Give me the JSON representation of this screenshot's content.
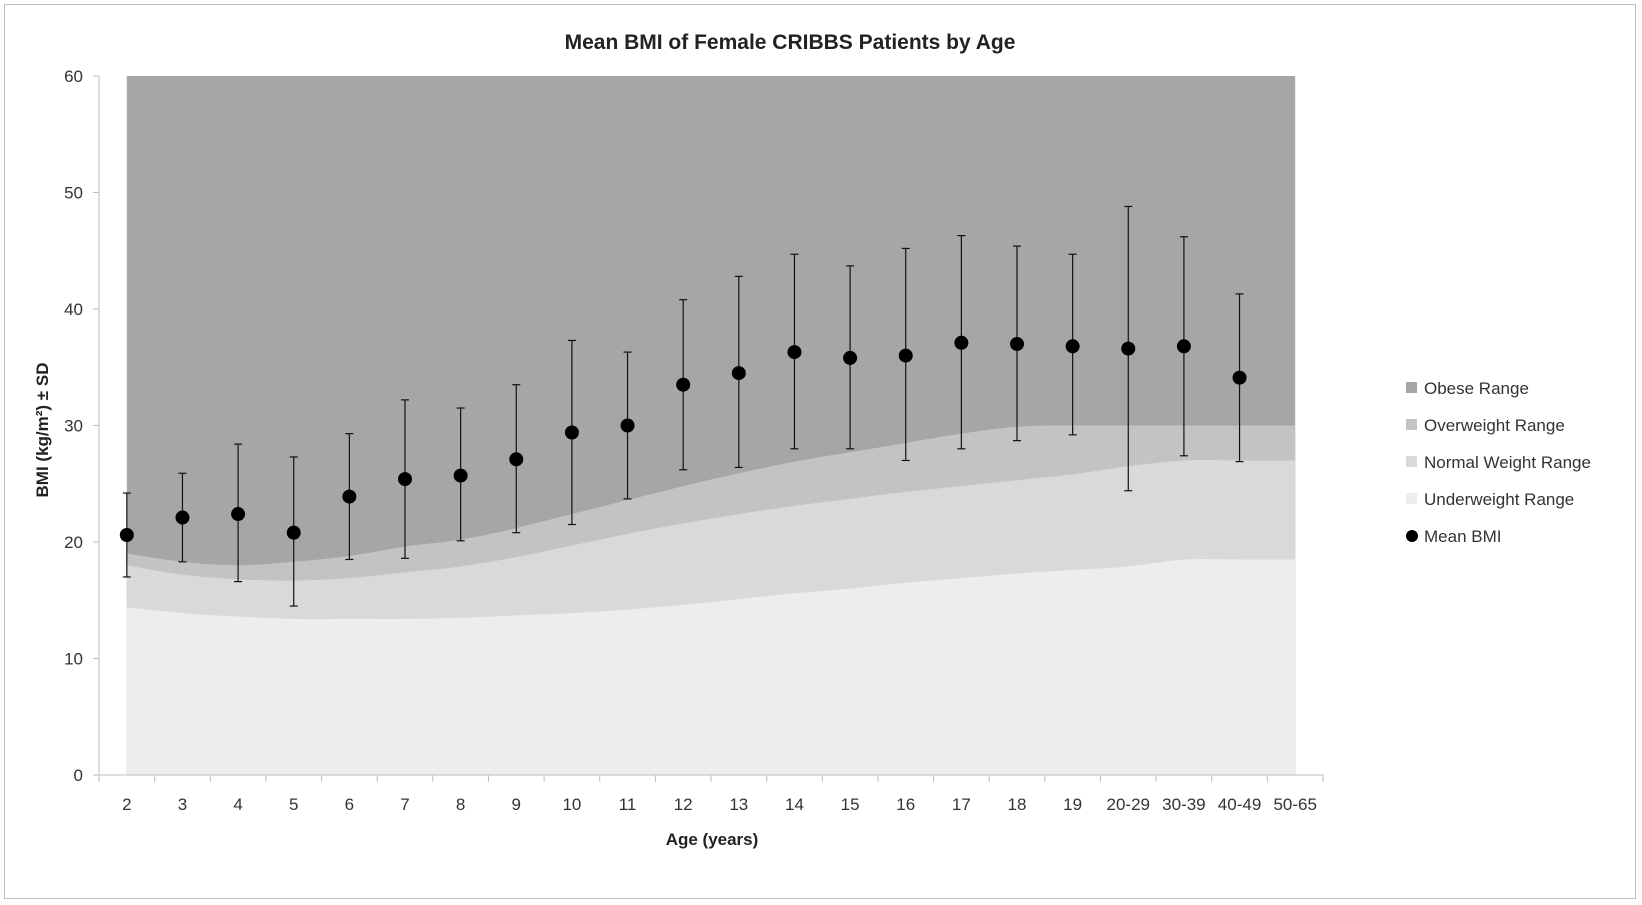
{
  "chart_data": {
    "type": "scatter",
    "title": "Mean BMI of Female CRIBBS Patients by Age",
    "xlabel": "Age (years)",
    "ylabel": "BMI (kg/m²) ± SD",
    "ylim": [
      0,
      60
    ],
    "yticks": [
      0,
      10,
      20,
      30,
      40,
      50,
      60
    ],
    "categories": [
      "2",
      "3",
      "4",
      "5",
      "6",
      "7",
      "8",
      "9",
      "10",
      "11",
      "12",
      "13",
      "14",
      "15",
      "16",
      "17",
      "18",
      "19",
      "20-29",
      "30-39",
      "40-49",
      "50-65"
    ],
    "bands": [
      {
        "name": "Obese Range",
        "color": "#a6a6a6",
        "upper": 60
      },
      {
        "name": "Overweight Range",
        "color": "#c3c3c3",
        "upper": [
          19.0,
          18.3,
          18.0,
          18.3,
          18.8,
          19.6,
          20.2,
          21.2,
          22.4,
          23.6,
          24.8,
          25.9,
          26.9,
          27.7,
          28.5,
          29.3,
          29.9,
          30.0,
          30.0,
          30.0,
          30.0,
          30.0
        ]
      },
      {
        "name": "Normal Weight Range",
        "color": "#d9d9d9",
        "upper": [
          18.0,
          17.2,
          16.8,
          16.7,
          16.9,
          17.4,
          17.9,
          18.7,
          19.7,
          20.7,
          21.6,
          22.4,
          23.1,
          23.7,
          24.3,
          24.8,
          25.3,
          25.8,
          26.5,
          27.0,
          27.0,
          27.0
        ]
      },
      {
        "name": "Underweight Range",
        "color": "#ededed",
        "upper": [
          14.4,
          13.9,
          13.6,
          13.4,
          13.4,
          13.4,
          13.5,
          13.7,
          13.9,
          14.2,
          14.6,
          15.1,
          15.6,
          16.0,
          16.5,
          16.9,
          17.3,
          17.6,
          17.9,
          18.5,
          18.5,
          18.5
        ]
      }
    ],
    "series": [
      {
        "name": "Mean BMI",
        "values": [
          20.6,
          22.1,
          22.4,
          20.8,
          23.9,
          25.4,
          25.7,
          27.1,
          29.4,
          30.0,
          33.5,
          34.5,
          36.3,
          35.8,
          36.0,
          37.1,
          37.0,
          36.8,
          36.6,
          36.8,
          34.1,
          null
        ],
        "upper": [
          24.2,
          25.9,
          28.4,
          27.3,
          29.3,
          32.2,
          31.5,
          33.5,
          37.3,
          36.3,
          40.8,
          42.8,
          44.7,
          43.7,
          45.2,
          46.3,
          45.4,
          44.7,
          48.8,
          46.2,
          41.3,
          null
        ],
        "lower": [
          17.0,
          18.3,
          16.6,
          14.5,
          18.5,
          18.6,
          20.1,
          20.8,
          21.5,
          23.7,
          26.2,
          26.4,
          28.0,
          28.0,
          27.0,
          28.0,
          28.7,
          29.2,
          24.4,
          27.4,
          26.9,
          null
        ],
        "color": "#000000"
      }
    ],
    "legend": [
      "Obese Range",
      "Overweight Range",
      "Normal Weight Range",
      "Underweight Range",
      "Mean BMI"
    ],
    "legend_position": "right",
    "grid": false
  }
}
